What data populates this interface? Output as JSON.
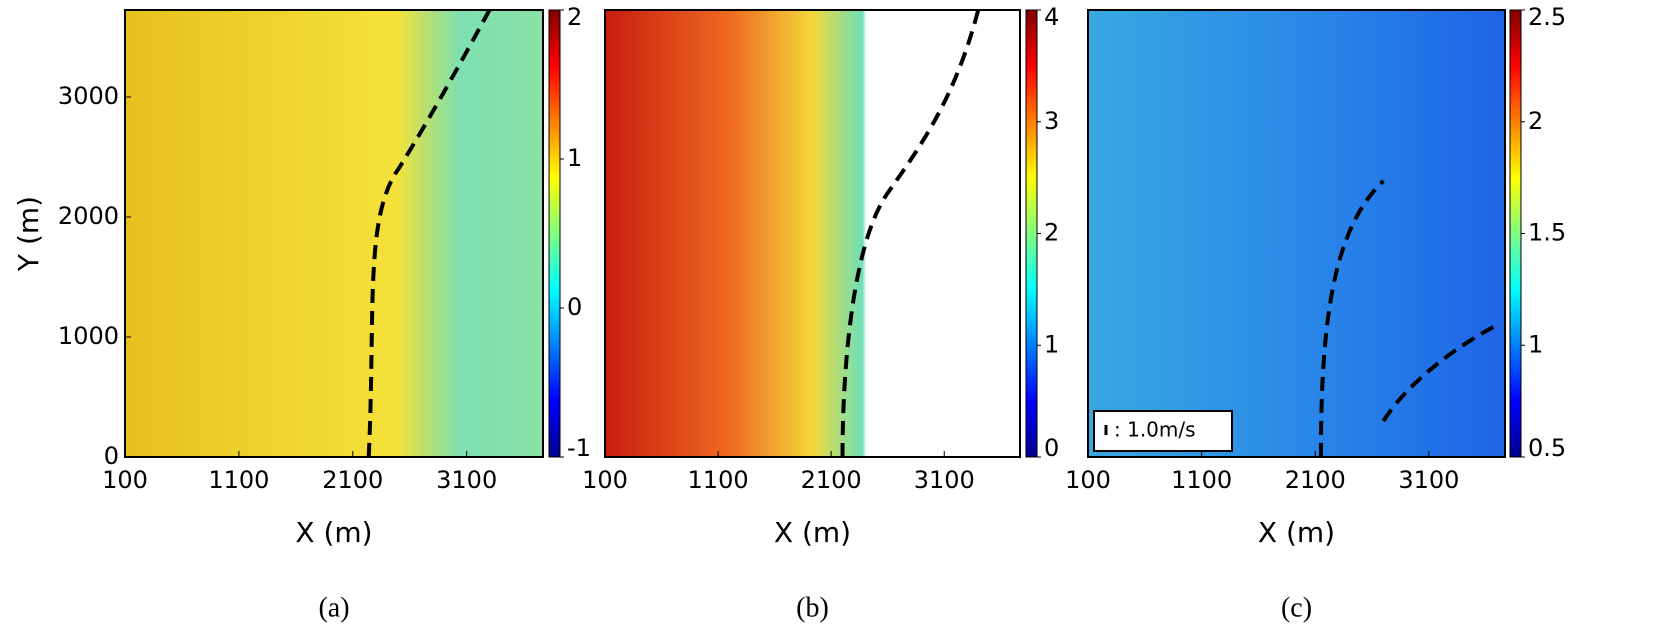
{
  "chart_data": [
    {
      "type": "heatmap",
      "colormap": "jet",
      "xlabel": "X (m)",
      "ylabel": "Y (m)",
      "caption": "(a)",
      "xlim": [
        100,
        3770
      ],
      "ylim": [
        0,
        3725
      ],
      "xticks": [
        100,
        1100,
        2100,
        3100
      ],
      "yticks": [
        0,
        1000,
        2000,
        3000
      ],
      "clim": [
        -1,
        2
      ],
      "cticks": [
        -1,
        0,
        1,
        2
      ]
    },
    {
      "type": "heatmap",
      "colormap": "jet",
      "xlabel": "X (m)",
      "caption": "(b)",
      "xlim": [
        100,
        3770
      ],
      "ylim": [
        0,
        3725
      ],
      "xticks": [
        100,
        1100,
        2100,
        3100
      ],
      "clim": [
        0,
        4
      ],
      "cticks": [
        0,
        1,
        2,
        3,
        4
      ]
    },
    {
      "type": "heatmap",
      "colormap": "jet",
      "xlabel": "X (m)",
      "caption": "(c)",
      "annotation": ": 1.0m/s",
      "xlim": [
        100,
        3770
      ],
      "ylim": [
        0,
        3725
      ],
      "xticks": [
        100,
        1100,
        2100,
        3100
      ],
      "clim": [
        0.5,
        2.5
      ],
      "cticks": [
        0.5,
        1,
        1.5,
        2,
        2.5
      ]
    }
  ]
}
